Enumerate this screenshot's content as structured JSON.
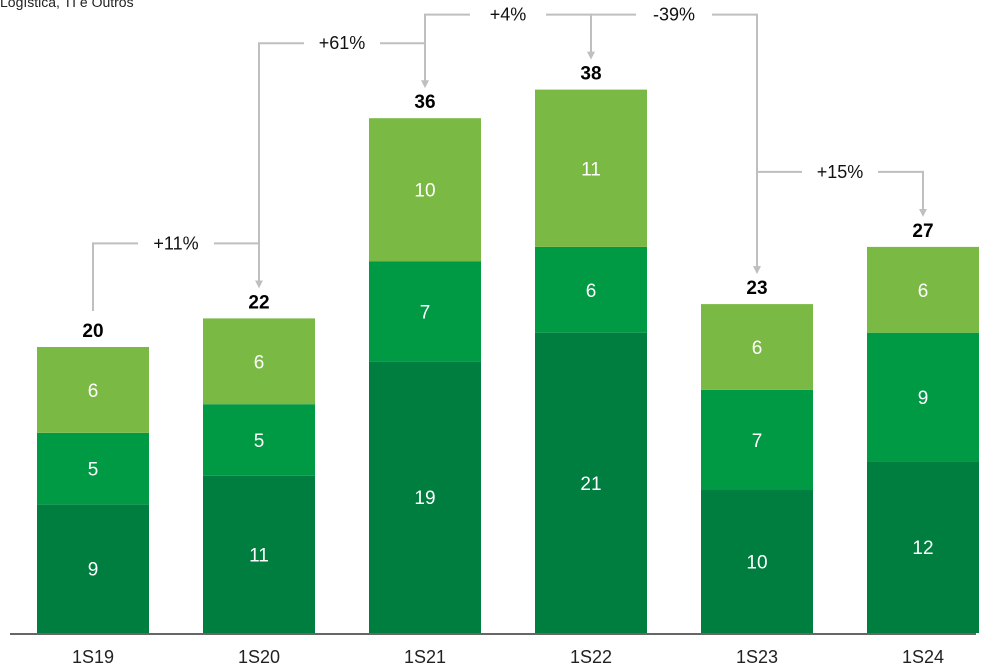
{
  "subtitle": "Logística, TI e Outros",
  "colors": {
    "bottom": "#007E3F",
    "middle": "#009A44",
    "top": "#7AB944",
    "arrow": "#BFBFBF",
    "axis": "#333333"
  },
  "chart_data": {
    "type": "bar",
    "stacked": true,
    "title": "",
    "xlabel": "",
    "ylabel": "",
    "ylim": [
      0,
      40
    ],
    "categories": [
      "1S19",
      "1S20",
      "1S21",
      "1S22",
      "1S23",
      "1S24"
    ],
    "series": [
      {
        "color_key": "bottom",
        "values": [
          9,
          11,
          19,
          21,
          10,
          12
        ]
      },
      {
        "color_key": "middle",
        "values": [
          5,
          5,
          7,
          6,
          7,
          9
        ]
      },
      {
        "color_key": "top",
        "values": [
          6,
          6,
          10,
          11,
          6,
          6
        ]
      }
    ],
    "totals": [
      20,
      22,
      36,
      38,
      23,
      27
    ],
    "growth": [
      "+11%",
      "+61%",
      "+4%",
      "-39%",
      "+15%"
    ]
  }
}
